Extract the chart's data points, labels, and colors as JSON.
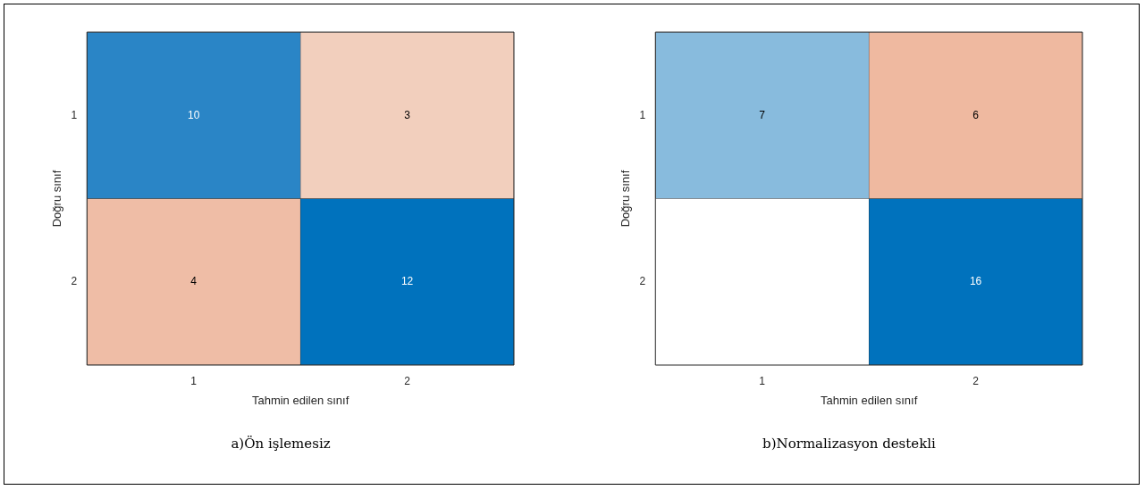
{
  "chart_data": [
    {
      "type": "heatmap",
      "title": "a)Ön işlemesiz",
      "xlabel": "Tahmin edilen sınıf",
      "ylabel": "Doğru sınıf",
      "categories": [
        "1",
        "2"
      ],
      "y_categories": [
        "1",
        "2"
      ],
      "cells": [
        [
          10,
          3
        ],
        [
          4,
          12
        ]
      ],
      "colors": [
        [
          "#2a85c6",
          "#f2cfbd"
        ],
        [
          "#efbda6",
          "#0072bd"
        ]
      ],
      "data_labels": true
    },
    {
      "type": "heatmap",
      "title": "b)Normalizasyon destekli",
      "xlabel": "Tahmin edilen sınıf",
      "ylabel": "Doğru sınıf",
      "categories": [
        "1",
        "2"
      ],
      "y_categories": [
        "1",
        "2"
      ],
      "cells": [
        [
          7,
          6
        ],
        [
          null,
          16
        ]
      ],
      "colors": [
        [
          "#88bbdd",
          "#efb9a0"
        ],
        [
          null,
          "#0072bd"
        ]
      ],
      "data_labels": true
    }
  ]
}
